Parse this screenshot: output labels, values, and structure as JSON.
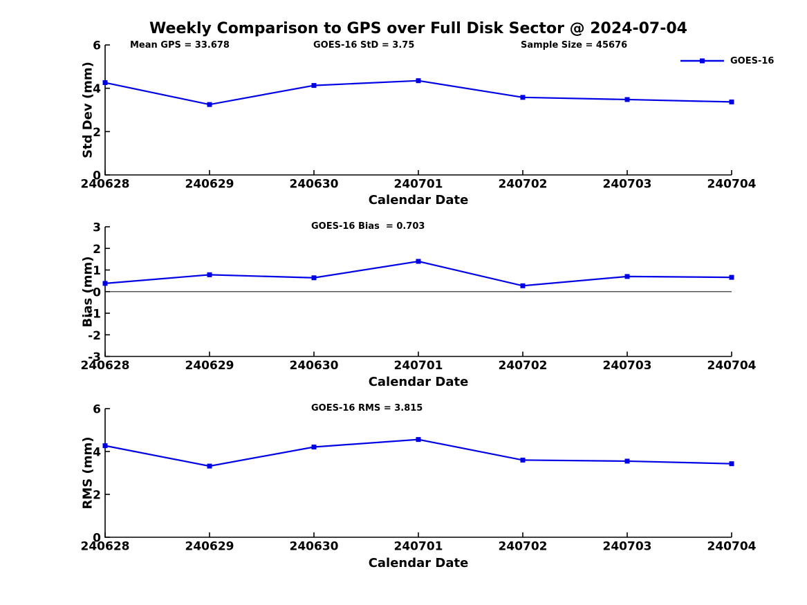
{
  "title": "Weekly Comparison to GPS over Full Disk Sector @ 2024-07-04",
  "legend": {
    "label": "GOES-16"
  },
  "colors": {
    "series": "#0000e6",
    "axis": "#000000",
    "text": "#000000",
    "zero_line": "#555555",
    "background": "#ffffff"
  },
  "chart_data": [
    {
      "type": "line",
      "panel": "std-dev",
      "annotations": [
        "Mean GPS = 33.678",
        "GOES-16 StD = 3.75",
        "Sample Size = 45676"
      ],
      "xlabel": "Calendar Date",
      "ylabel": "Std Dev (mm)",
      "categories": [
        "240628",
        "240629",
        "240630",
        "240701",
        "240702",
        "240703",
        "240704"
      ],
      "series": [
        {
          "name": "GOES-16",
          "values": [
            4.26,
            3.25,
            4.13,
            4.35,
            3.58,
            3.48,
            3.37
          ]
        }
      ],
      "ylim": [
        0,
        6
      ],
      "yticks": [
        0,
        2,
        4,
        6
      ],
      "grid": false,
      "legend_position": "top-right",
      "zero_line": false
    },
    {
      "type": "line",
      "panel": "bias",
      "annotations": [
        "GOES-16 Bias  = 0.703"
      ],
      "xlabel": "Calendar Date",
      "ylabel": "Bias (mm)",
      "categories": [
        "240628",
        "240629",
        "240630",
        "240701",
        "240702",
        "240703",
        "240704"
      ],
      "series": [
        {
          "name": "GOES-16",
          "values": [
            0.38,
            0.78,
            0.64,
            1.4,
            0.27,
            0.7,
            0.66
          ]
        }
      ],
      "ylim": [
        -3,
        3
      ],
      "yticks": [
        -3,
        -2,
        -1,
        0,
        1,
        2,
        3
      ],
      "grid": false,
      "zero_line": true
    },
    {
      "type": "line",
      "panel": "rms",
      "annotations": [
        "GOES-16 RMS = 3.815"
      ],
      "xlabel": "Calendar Date",
      "ylabel": "RMS (mm)",
      "categories": [
        "240628",
        "240629",
        "240630",
        "240701",
        "240702",
        "240703",
        "240704"
      ],
      "series": [
        {
          "name": "GOES-16",
          "values": [
            4.27,
            3.32,
            4.21,
            4.56,
            3.6,
            3.55,
            3.43
          ]
        }
      ],
      "ylim": [
        0,
        6
      ],
      "yticks": [
        0,
        2,
        4,
        6
      ],
      "grid": false,
      "zero_line": false
    }
  ]
}
